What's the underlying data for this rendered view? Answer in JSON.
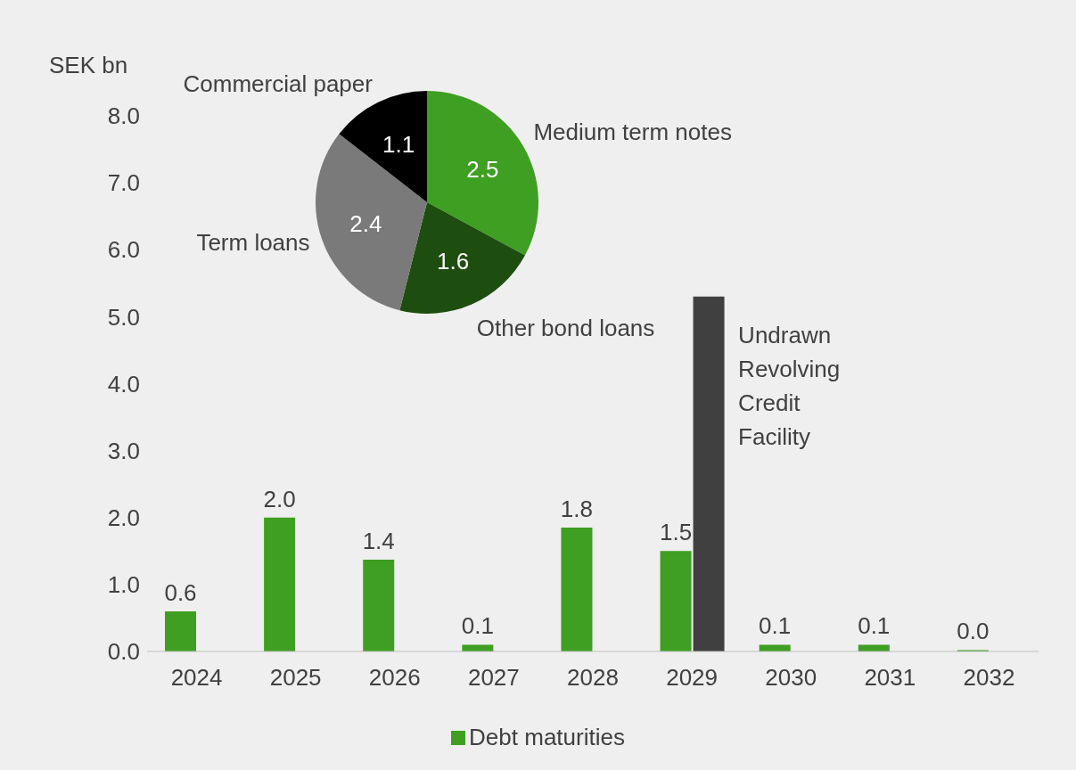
{
  "chart_data": [
    {
      "type": "bar",
      "ylabel": "SEK bn",
      "categories": [
        "2024",
        "2025",
        "2026",
        "2027",
        "2028",
        "2029",
        "2030",
        "2031",
        "2032"
      ],
      "series": [
        {
          "name": "Debt maturities",
          "color": "#3f9f22",
          "values": [
            0.6,
            2.0,
            1.37,
            0.1,
            1.85,
            1.5,
            0.1,
            0.1,
            0.02
          ],
          "value_labels": [
            "0.6",
            "2.0",
            "1.4",
            "0.1",
            "1.8",
            "1.5",
            "0.1",
            "0.1",
            "0.0"
          ]
        },
        {
          "color": "#404040",
          "values": [
            null,
            null,
            null,
            null,
            null,
            5.3,
            null,
            null,
            null
          ]
        }
      ],
      "ylim": [
        0,
        8
      ],
      "yticks": [
        {
          "value": 0,
          "label": "0.0"
        },
        {
          "value": 1,
          "label": "1.0"
        },
        {
          "value": 2,
          "label": "2.0"
        },
        {
          "value": 3,
          "label": "3.0"
        },
        {
          "value": 4,
          "label": "4.0"
        },
        {
          "value": 5,
          "label": "5.0"
        },
        {
          "value": 6,
          "label": "6.0"
        },
        {
          "value": 7,
          "label": "7.0"
        },
        {
          "value": 8,
          "label": "8.0"
        }
      ],
      "grid": false,
      "legend": "bottom",
      "annotations": [
        {
          "text": "Undrawn Revolving Credit Facility",
          "x": "2029",
          "y": 4.6
        }
      ]
    },
    {
      "type": "pie",
      "categories": [
        "Medium term notes",
        "Other bond loans",
        "Term loans",
        "Commercial paper"
      ],
      "values": [
        2.5,
        1.6,
        2.4,
        1.1
      ],
      "colors": [
        "#3f9f22",
        "#1e4d10",
        "#7a7a7a",
        "#000000"
      ],
      "data_labels": true
    }
  ]
}
